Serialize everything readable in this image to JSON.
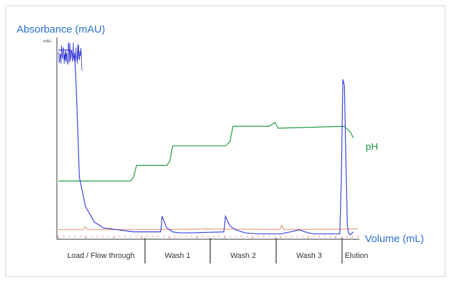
{
  "chart_data": {
    "type": "line",
    "title": "",
    "xlabel": "Volume (mL)",
    "ylabel": "Absorbance (mAU)",
    "y_unit_small": "mAU",
    "right_label": "pH",
    "colors": {
      "absorbance": "#3a3fe0",
      "ph": "#1f9a3e",
      "conductivity": "#d98d66",
      "fraction_marks": "#e2363a",
      "ylabel": "#2a6fd6",
      "xlabel": "#2a6fd6",
      "ph_label": "#1f9a3e",
      "frame": "#d4d4d4",
      "axis": "#333333",
      "phase_text": "#333333"
    },
    "phases": [
      "Load / Flow through",
      "Wash 1",
      "Wash 2",
      "Wash 3",
      "Elution"
    ],
    "grid": false,
    "series": [
      {
        "key": "absorbance",
        "x": [
          0,
          0.02,
          0.04,
          0.055,
          0.06,
          0.07,
          0.09,
          0.12,
          0.15,
          0.2,
          0.25,
          0.3,
          0.34,
          0.345,
          0.36,
          0.38,
          0.4,
          0.45,
          0.55,
          0.555,
          0.57,
          0.59,
          0.62,
          0.66,
          0.7,
          0.74,
          0.77,
          0.8,
          0.83,
          0.85,
          0.9,
          0.935,
          0.94,
          0.945,
          0.95,
          0.955,
          0.96,
          0.965,
          0.97,
          0.98
        ],
        "y": [
          0.95,
          0.95,
          0.95,
          0.9,
          0.75,
          0.3,
          0.15,
          0.07,
          0.04,
          0.03,
          0.02,
          0.02,
          0.02,
          0.1,
          0.04,
          0.02,
          0.015,
          0.015,
          0.02,
          0.1,
          0.05,
          0.03,
          0.015,
          0.01,
          0.01,
          0.01,
          0.02,
          0.03,
          0.015,
          0.01,
          0.01,
          0.01,
          0.3,
          0.8,
          0.77,
          0.4,
          0.05,
          0.01,
          0.005,
          0.02
        ]
      },
      {
        "key": "ph",
        "x": [
          0,
          0.1,
          0.2,
          0.24,
          0.25,
          0.26,
          0.36,
          0.37,
          0.38,
          0.55,
          0.555,
          0.57,
          0.58,
          0.7,
          0.7,
          0.72,
          0.73,
          0.95,
          0.97,
          0.98
        ],
        "y": [
          0.28,
          0.28,
          0.28,
          0.28,
          0.3,
          0.36,
          0.36,
          0.38,
          0.46,
          0.46,
          0.46,
          0.48,
          0.56,
          0.56,
          0.56,
          0.58,
          0.55,
          0.56,
          0.53,
          0.5
        ]
      }
    ],
    "ylim": [
      0,
      1
    ],
    "xlim": [
      0,
      1
    ]
  }
}
